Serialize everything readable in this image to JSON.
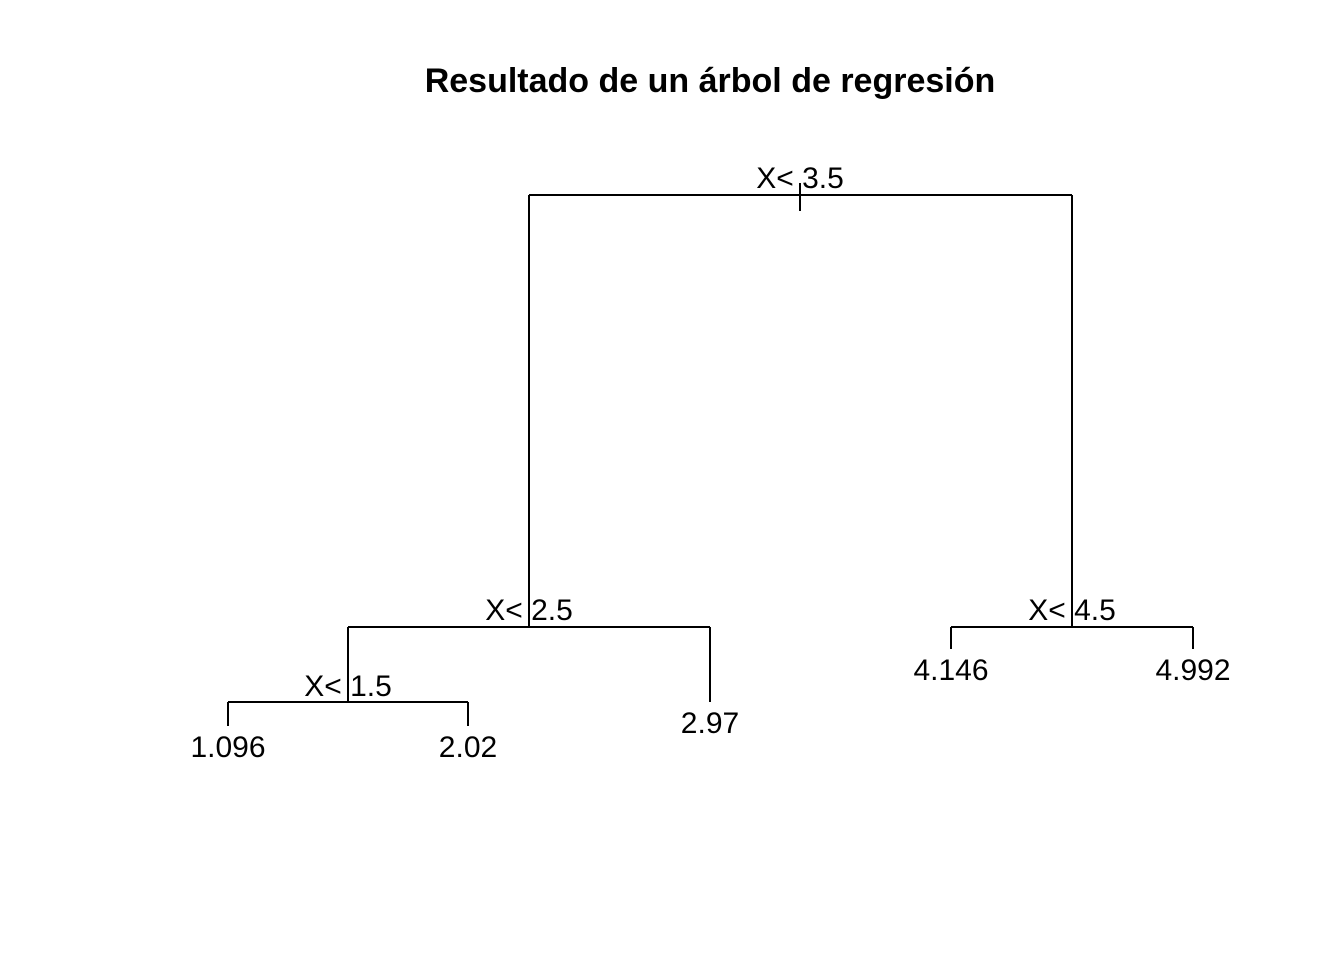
{
  "title": "Resultado de un árbol de regresión",
  "line_color": "#000000",
  "tree": {
    "split": "X< 3.5",
    "left": {
      "split": "X< 2.5",
      "left": {
        "split": "X< 1.5",
        "left": {
          "leaf": "1.096"
        },
        "right": {
          "leaf": "2.02"
        }
      },
      "right": {
        "leaf": "2.97"
      }
    },
    "right": {
      "split": "X< 4.5",
      "left": {
        "leaf": "4.146"
      },
      "right": {
        "leaf": "4.992"
      }
    }
  }
}
